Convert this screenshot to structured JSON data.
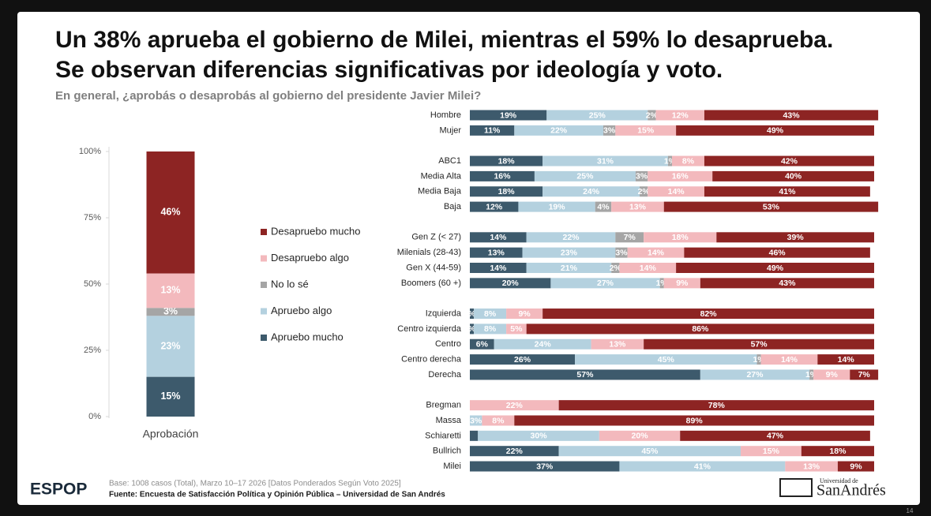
{
  "header": {
    "title": [
      "Un 38% aprueba el gobierno de Milei, mientras el 59% lo desaprueba.",
      "Se observan diferencias significativas por ideología y voto."
    ],
    "subtitle": "En general, ¿aprobás o desaprobás al gobierno del presidente Javier Milei?"
  },
  "footer": {
    "logo": "ESPOP",
    "base": "Base: 1008 casos (Total), Marzo 10–17 2026 [Datos Ponderados Según Voto 2025]",
    "source": "Fuente: Encuesta de Satisfacción Política y Opinión Pública – Universidad de San Andrés",
    "university": [
      "Universidad de",
      "SanAndrés"
    ],
    "page": "14"
  },
  "chart_data": [
    {
      "type": "bar",
      "orientation": "vertical",
      "stacked": true,
      "legend": "right",
      "categories": [
        "Aprobación"
      ],
      "ylim": [
        0,
        100
      ],
      "yticks": [
        {
          "value": 0,
          "label": "0%"
        },
        {
          "value": 25,
          "label": "25%"
        },
        {
          "value": 50,
          "label": "50%"
        },
        {
          "value": 75,
          "label": "75%"
        },
        {
          "value": 100,
          "label": "100%"
        }
      ],
      "series": [
        {
          "name": "Apruebo mucho",
          "color": "#3d5a6c",
          "values": [
            15
          ],
          "value_labels": [
            "15%"
          ]
        },
        {
          "name": "Apruebo algo",
          "color": "#b4d1df",
          "values": [
            23
          ],
          "value_labels": [
            "23%"
          ]
        },
        {
          "name": "No lo sé",
          "color": "#a5a5a5",
          "values": [
            3
          ],
          "value_labels": [
            "3%"
          ]
        },
        {
          "name": "Desapruebo algo",
          "color": "#f3b9bd",
          "values": [
            13
          ],
          "value_labels": [
            "13%"
          ]
        },
        {
          "name": "Desapruebo mucho",
          "color": "#8d2423",
          "values": [
            46
          ],
          "value_labels": [
            "46%"
          ]
        }
      ]
    },
    {
      "type": "bar",
      "orientation": "horizontal",
      "stacked": true,
      "categories": [
        "Hombre",
        "Mujer"
      ],
      "series": [
        {
          "color": "#3d5a6c",
          "values": [
            19,
            11
          ],
          "value_labels": [
            "19%",
            "11%"
          ]
        },
        {
          "color": "#b4d1df",
          "values": [
            25,
            22
          ],
          "value_labels": [
            "25%",
            "22%"
          ]
        },
        {
          "color": "#a5a5a5",
          "values": [
            2,
            3
          ],
          "value_labels": [
            "2%",
            "3%"
          ]
        },
        {
          "color": "#f3b9bd",
          "values": [
            12,
            15
          ],
          "value_labels": [
            "12%",
            "15%"
          ]
        },
        {
          "color": "#8d2423",
          "values": [
            43,
            49
          ],
          "value_labels": [
            "43%",
            "49%"
          ]
        }
      ]
    },
    {
      "type": "bar",
      "orientation": "horizontal",
      "stacked": true,
      "categories": [
        "ABC1",
        "Media Alta",
        "Media Baja",
        "Baja"
      ],
      "series": [
        {
          "color": "#3d5a6c",
          "values": [
            18,
            16,
            18,
            12
          ],
          "value_labels": [
            "18%",
            "16%",
            "18%",
            "12%"
          ]
        },
        {
          "color": "#b4d1df",
          "values": [
            31,
            25,
            24,
            19
          ],
          "value_labels": [
            "31%",
            "25%",
            "24%",
            "19%"
          ]
        },
        {
          "color": "#a5a5a5",
          "values": [
            1,
            3,
            2,
            4
          ],
          "value_labels": [
            "1%",
            "3%",
            "2%",
            "4%"
          ]
        },
        {
          "color": "#f3b9bd",
          "values": [
            8,
            16,
            14,
            13
          ],
          "value_labels": [
            "8%",
            "16%",
            "14%",
            "13%"
          ]
        },
        {
          "color": "#8d2423",
          "values": [
            42,
            40,
            41,
            53
          ],
          "value_labels": [
            "42%",
            "40%",
            "41%",
            "53%"
          ]
        }
      ]
    },
    {
      "type": "bar",
      "orientation": "horizontal",
      "stacked": true,
      "categories": [
        "Gen Z (< 27)",
        "Milenials (28-43)",
        "Gen X (44-59)",
        "Boomers (60 +)"
      ],
      "series": [
        {
          "color": "#3d5a6c",
          "values": [
            14,
            13,
            14,
            20
          ],
          "value_labels": [
            "14%",
            "13%",
            "14%",
            "20%"
          ]
        },
        {
          "color": "#b4d1df",
          "values": [
            22,
            23,
            21,
            27
          ],
          "value_labels": [
            "22%",
            "23%",
            "21%",
            "27%"
          ]
        },
        {
          "color": "#a5a5a5",
          "values": [
            7,
            3,
            2,
            1
          ],
          "value_labels": [
            "7%",
            "3%",
            "2%",
            "1%"
          ]
        },
        {
          "color": "#f3b9bd",
          "values": [
            18,
            14,
            14,
            9
          ],
          "value_labels": [
            "18%",
            "14%",
            "14%",
            "9%"
          ]
        },
        {
          "color": "#8d2423",
          "values": [
            39,
            46,
            49,
            43
          ],
          "value_labels": [
            "39%",
            "46%",
            "49%",
            "43%"
          ]
        }
      ]
    },
    {
      "type": "bar",
      "orientation": "horizontal",
      "stacked": true,
      "categories": [
        "Izquierda",
        "Centro izquierda",
        "Centro",
        "Centro derecha",
        "Derecha"
      ],
      "series": [
        {
          "color": "#3d5a6c",
          "values": [
            1,
            1,
            6,
            26,
            57
          ],
          "value_labels": [
            "%",
            "%",
            "6%",
            "26%",
            "57%"
          ]
        },
        {
          "color": "#b4d1df",
          "values": [
            8,
            8,
            24,
            45,
            27
          ],
          "value_labels": [
            "8%",
            "8%",
            "24%",
            "45%",
            "27%"
          ]
        },
        {
          "color": "#a5a5a5",
          "values": [
            null,
            null,
            null,
            1,
            1
          ],
          "value_labels": [
            null,
            null,
            null,
            "1%",
            "1%"
          ]
        },
        {
          "color": "#f3b9bd",
          "values": [
            9,
            5,
            13,
            14,
            9
          ],
          "value_labels": [
            "9%",
            "5%",
            "13%",
            "14%",
            "9%"
          ]
        },
        {
          "color": "#8d2423",
          "values": [
            82,
            86,
            57,
            14,
            7
          ],
          "value_labels": [
            "82%",
            "86%",
            "57%",
            "14%",
            "7%"
          ]
        }
      ]
    },
    {
      "type": "bar",
      "orientation": "horizontal",
      "stacked": true,
      "categories": [
        "Bregman",
        "Massa",
        "Schiaretti",
        "Bullrich",
        "Milei"
      ],
      "series": [
        {
          "color": "#3d5a6c",
          "values": [
            null,
            null,
            2,
            22,
            37
          ],
          "value_labels": [
            null,
            null,
            null,
            "22%",
            "37%"
          ]
        },
        {
          "color": "#b4d1df",
          "values": [
            null,
            3,
            30,
            45,
            41
          ],
          "value_labels": [
            null,
            "3%",
            "30%",
            "45%",
            "41%"
          ]
        },
        {
          "color": "#a5a5a5",
          "values": [
            null,
            null,
            null,
            null,
            null
          ],
          "value_labels": [
            null,
            null,
            null,
            null,
            null
          ]
        },
        {
          "color": "#f3b9bd",
          "values": [
            22,
            8,
            20,
            15,
            13
          ],
          "value_labels": [
            "22%",
            "8%",
            "20%",
            "15%",
            "13%"
          ]
        },
        {
          "color": "#8d2423",
          "values": [
            78,
            89,
            47,
            18,
            9
          ],
          "value_labels": [
            "78%",
            "89%",
            "47%",
            "18%",
            "9%"
          ]
        }
      ]
    }
  ]
}
